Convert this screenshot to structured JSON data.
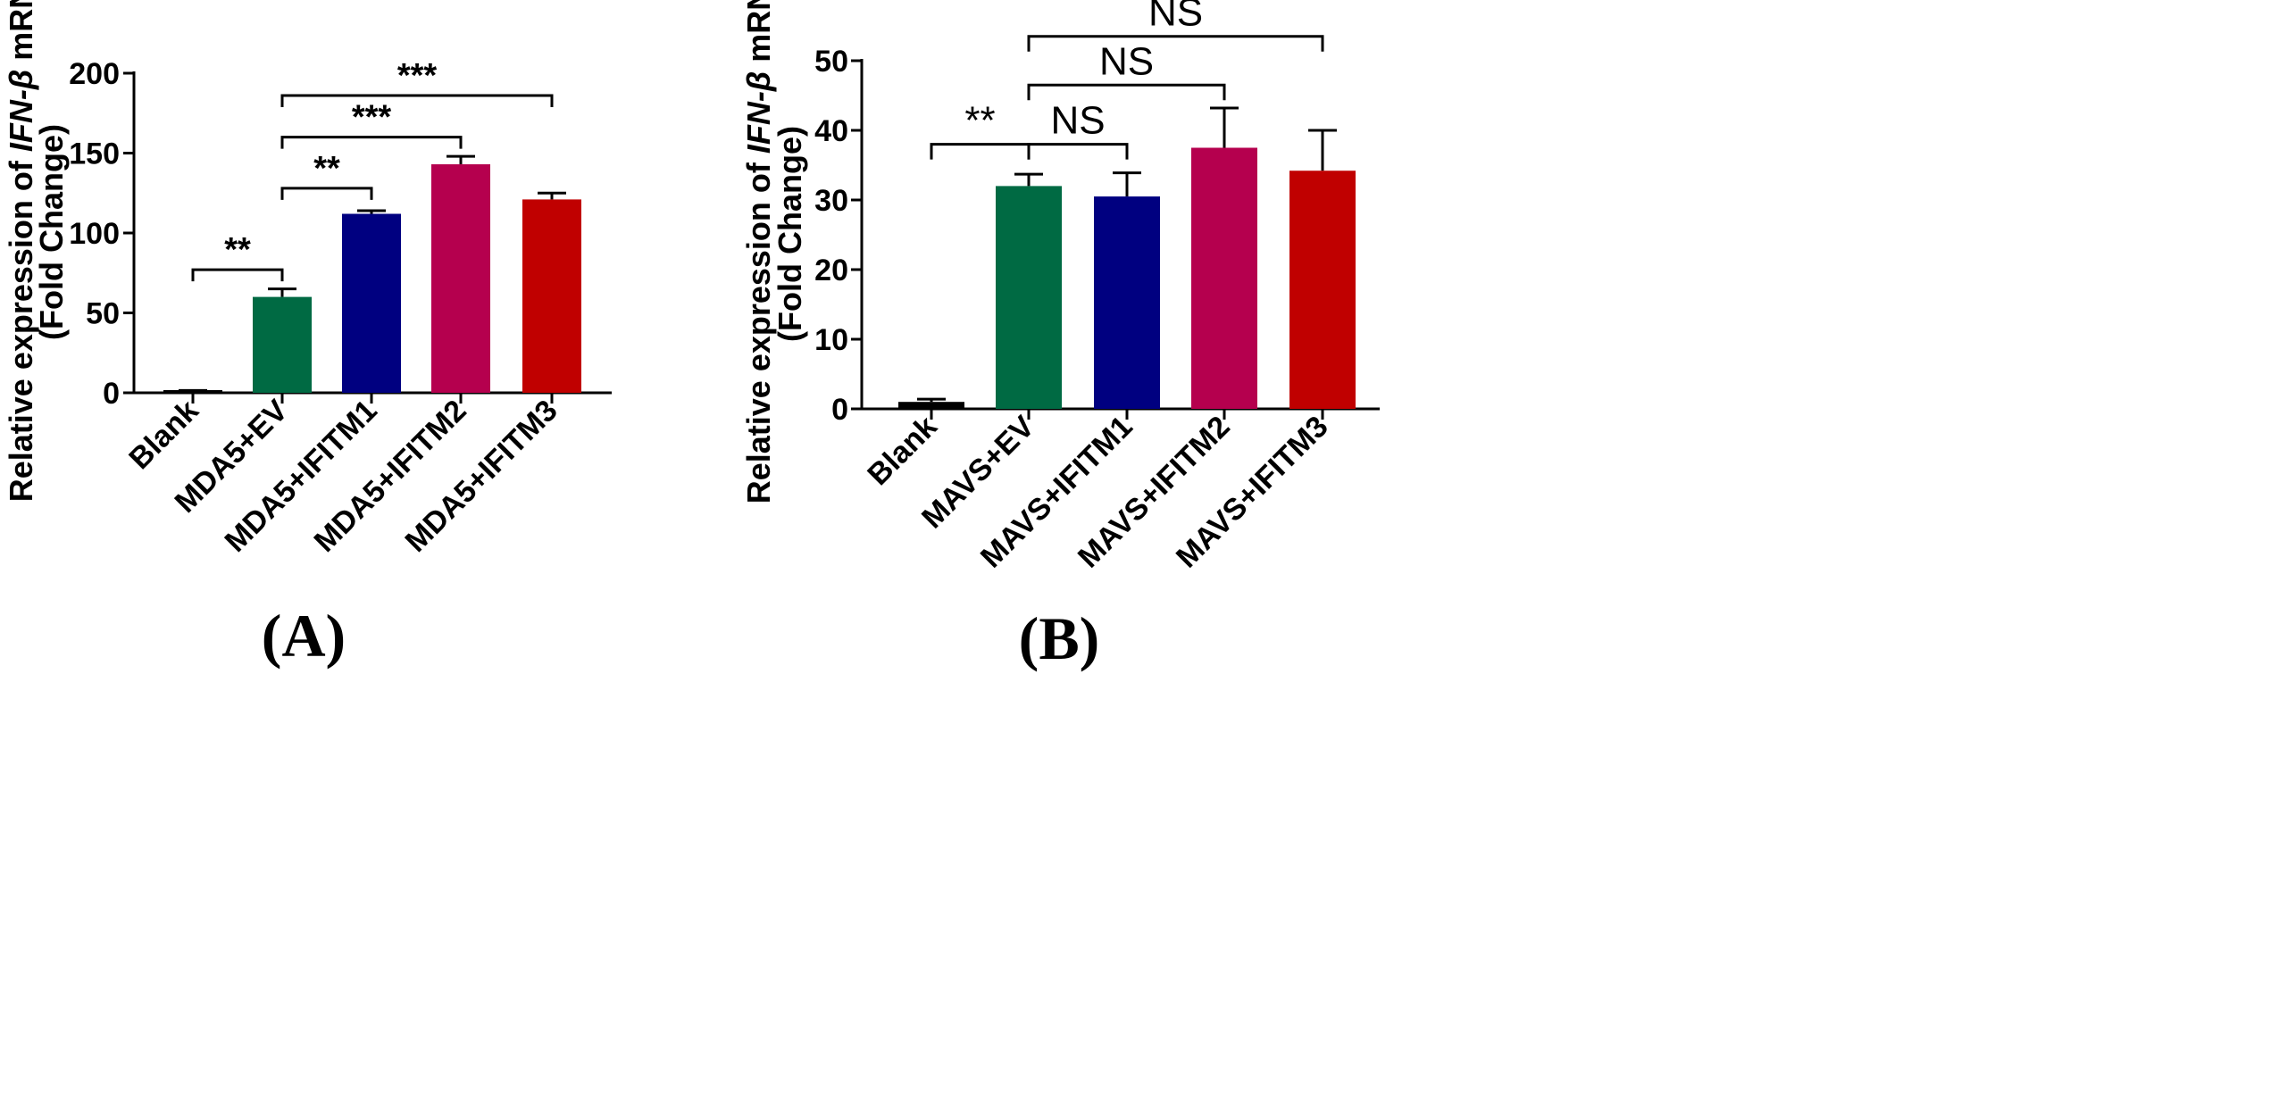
{
  "chart_data": [
    {
      "type": "bar",
      "panel_label": "(A)",
      "ylabel": {
        "prefix": "Relative expression of ",
        "gene": "IFN-β",
        "suffix": " mRNA",
        "line2": "(Fold Change)"
      },
      "ylim": [
        0,
        200
      ],
      "yticks": [
        0,
        50,
        100,
        150,
        200
      ],
      "categories": [
        "Blank",
        "MDA5+EV",
        "MDA5+IFITM1",
        "MDA5+IFITM2",
        "MDA5+IFITM3"
      ],
      "values": [
        1,
        60,
        112,
        143,
        121
      ],
      "errors": [
        0.5,
        5,
        2,
        5,
        4
      ],
      "colors": [
        "#000000",
        "#006a43",
        "#000080",
        "#b5004e",
        "#c00000"
      ],
      "grid": false,
      "significance": [
        {
          "from": 0,
          "to": 1,
          "label": "**",
          "y": 77
        },
        {
          "from": 1,
          "to": 2,
          "label": "**",
          "y": 128
        },
        {
          "from": 1,
          "to": 3,
          "label": "***",
          "y": 160
        },
        {
          "from": 1,
          "to": 4,
          "label": "***",
          "y": 186
        }
      ]
    },
    {
      "type": "bar",
      "panel_label": "(B)",
      "ylabel": {
        "prefix": "Relative expression of ",
        "gene": "IFN-β",
        "suffix": " mRNA",
        "line2": "(Fold Change)"
      },
      "ylim": [
        0,
        50
      ],
      "yticks": [
        0,
        10,
        20,
        30,
        40,
        50
      ],
      "categories": [
        "Blank",
        "MAVS+EV",
        "MAVS+IFITM1",
        "MAVS+IFITM2",
        "MAVS+IFITM3"
      ],
      "values": [
        1,
        32,
        30.5,
        37.5,
        34.2
      ],
      "errors": [
        0.4,
        1.7,
        3.4,
        5.7,
        5.8
      ],
      "colors": [
        "#000000",
        "#006a43",
        "#000080",
        "#b5004e",
        "#c00000"
      ],
      "grid": false,
      "significance": [
        {
          "from": 0,
          "to": 1,
          "label": "**",
          "y": 38
        },
        {
          "from": 1,
          "to": 2,
          "label": "NS",
          "y": 38
        },
        {
          "from": 1,
          "to": 3,
          "label": "NS",
          "y": 46.5
        },
        {
          "from": 1,
          "to": 4,
          "label": "NS",
          "y": 53.5
        }
      ]
    }
  ]
}
